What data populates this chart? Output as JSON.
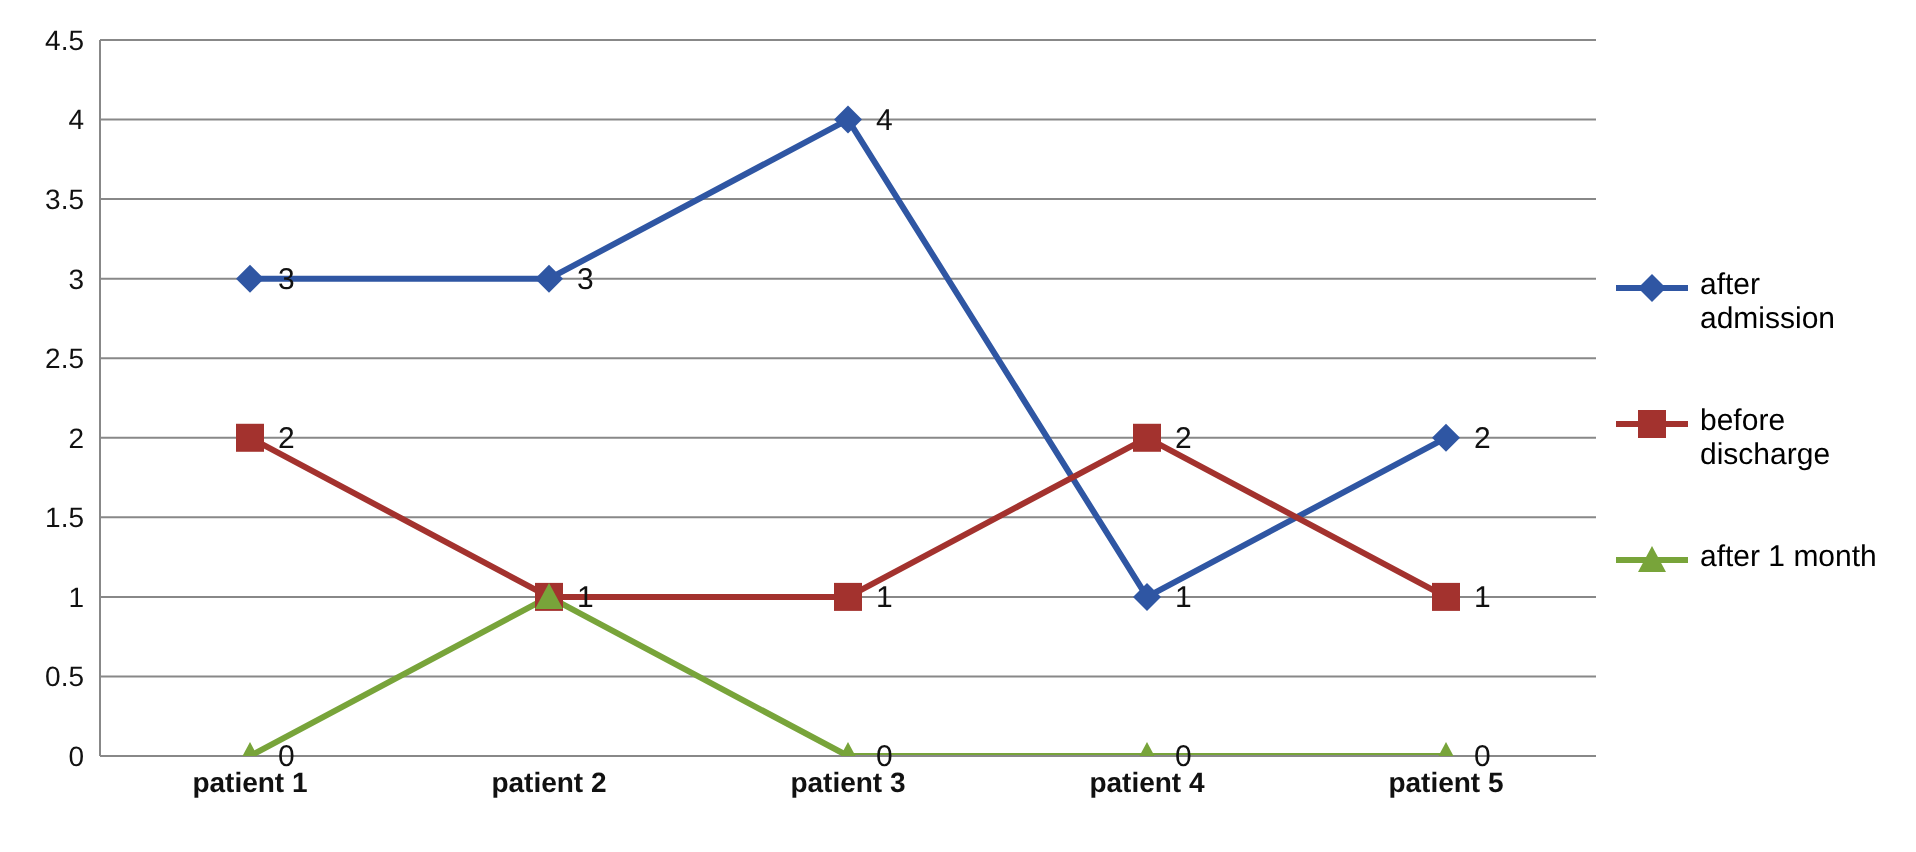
{
  "chart_data": {
    "type": "line",
    "categories": [
      "patient 1",
      "patient 2",
      "patient 3",
      "patient 4",
      "patient 5"
    ],
    "series": [
      {
        "name": "after admission",
        "color": "#2f56a3",
        "values": [
          3,
          3,
          4,
          1,
          2
        ],
        "value_labels": [
          "3",
          "3",
          "4",
          "1",
          "2"
        ],
        "marker": "diamond"
      },
      {
        "name": "before discharge",
        "color": "#a3322e",
        "values": [
          2,
          1,
          1,
          2,
          1
        ],
        "value_labels": [
          "2",
          "1",
          "1",
          "2",
          "1"
        ],
        "marker": "square"
      },
      {
        "name": "after 1 month",
        "color": "#78a43a",
        "values": [
          0,
          1,
          0,
          0,
          0
        ],
        "value_labels": [
          "0",
          null,
          "0",
          "0",
          "0"
        ],
        "marker": "triangle"
      }
    ],
    "ylim": [
      0,
      4.5
    ],
    "yticks": [
      0,
      0.5,
      1,
      1.5,
      2,
      2.5,
      3,
      3.5,
      4,
      4.5
    ],
    "grid": "y",
    "legend": "right",
    "line_style": "solid"
  }
}
